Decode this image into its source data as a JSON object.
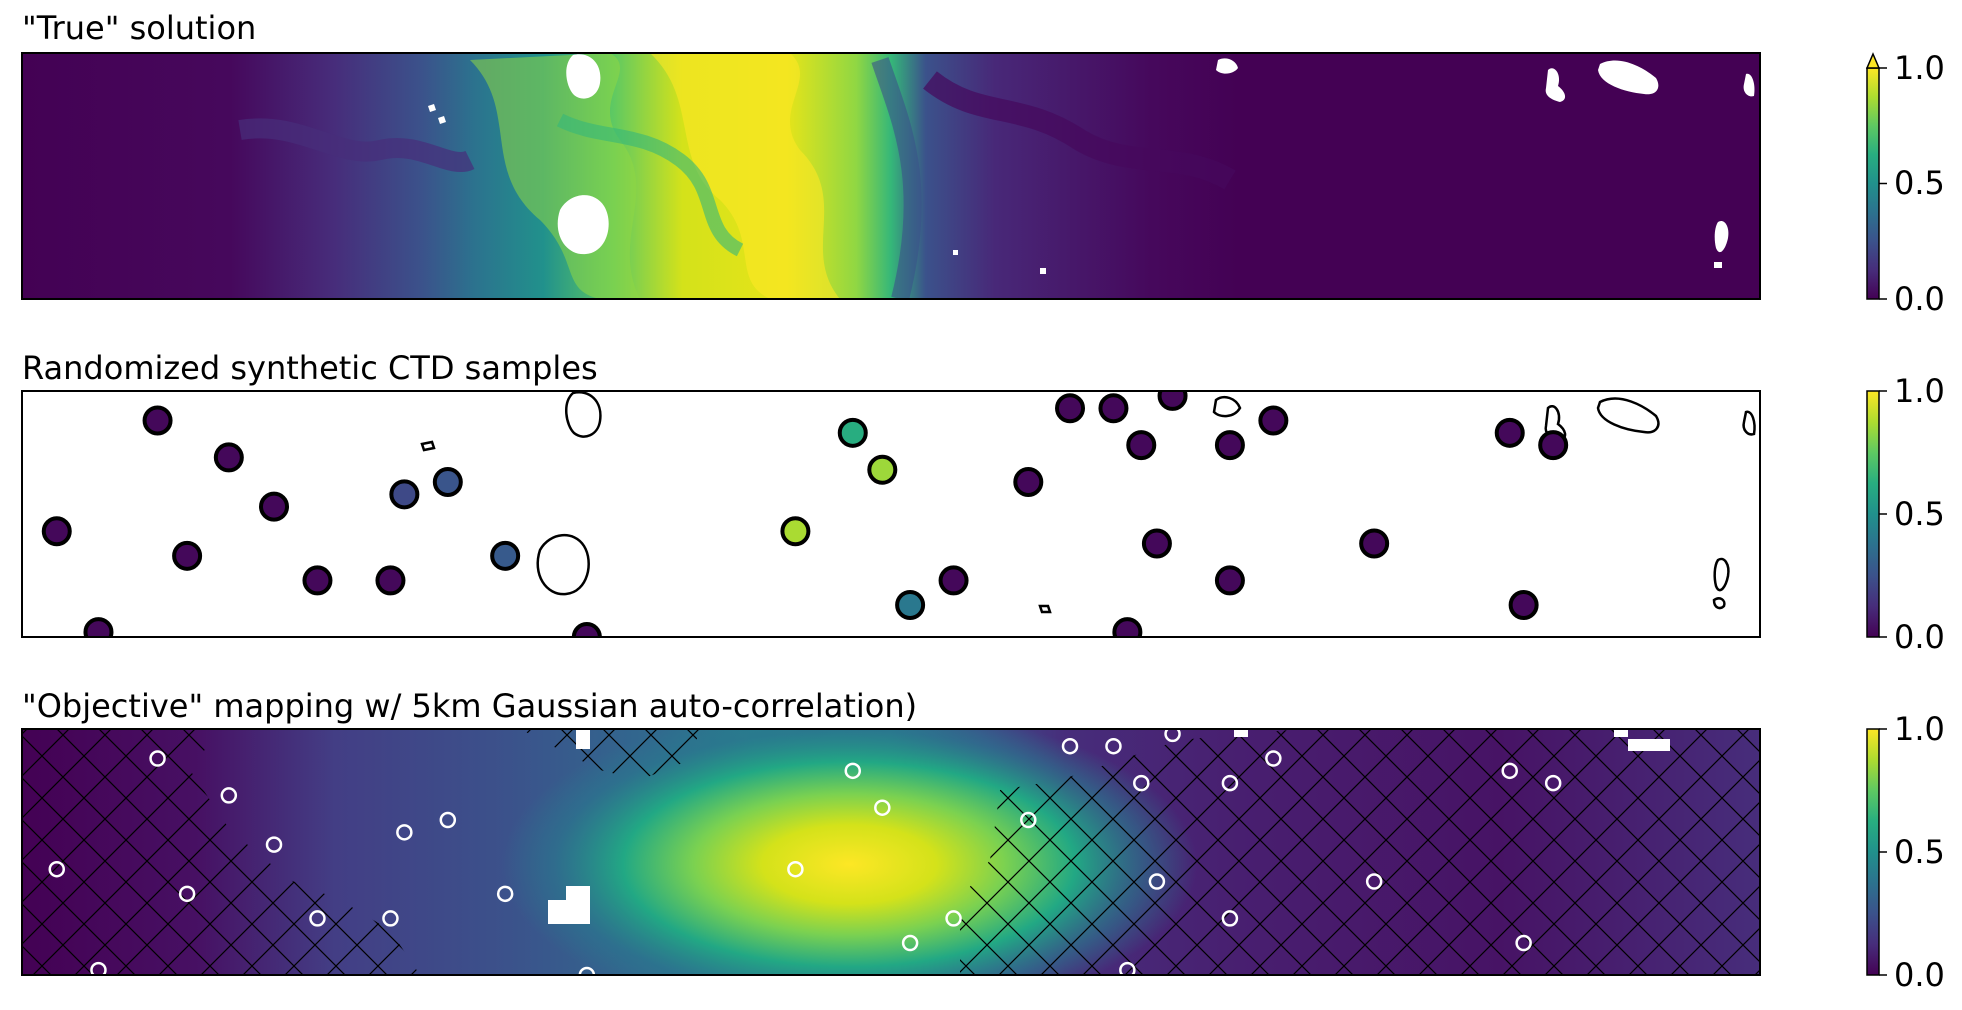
{
  "chart_data": [
    {
      "type": "heatmap",
      "title": "\"True\" solution",
      "colormap": "viridis",
      "colorbar": {
        "min": 0.0,
        "max": 1.0,
        "ticks": [
          "0.0",
          "0.5",
          "1.0"
        ],
        "extend": "max"
      },
      "xlabel": "",
      "ylabel": "",
      "axes_ticks": "none",
      "features": "turbulent tracer field; high values (~1.0) in central band, near zero elsewhere; white land masks"
    },
    {
      "type": "scatter",
      "title": "Randomized synthetic CTD samples",
      "colormap": "viridis",
      "colorbar": {
        "min": 0.0,
        "max": 1.0,
        "ticks": [
          "0.0",
          "0.5",
          "1.0"
        ]
      },
      "xlabel": "",
      "ylabel": "",
      "x_range": [
        0,
        1
      ],
      "y_range": [
        0,
        1
      ],
      "points": [
        {
          "x": 0.078,
          "y": 0.88,
          "value": 0.02
        },
        {
          "x": 0.119,
          "y": 0.73,
          "value": 0.02
        },
        {
          "x": 0.145,
          "y": 0.53,
          "value": 0.02
        },
        {
          "x": 0.02,
          "y": 0.43,
          "value": 0.02
        },
        {
          "x": 0.095,
          "y": 0.33,
          "value": 0.02
        },
        {
          "x": 0.044,
          "y": 0.02,
          "value": 0.02
        },
        {
          "x": 0.17,
          "y": 0.23,
          "value": 0.02
        },
        {
          "x": 0.212,
          "y": 0.23,
          "value": 0.02
        },
        {
          "x": 0.22,
          "y": 0.58,
          "value": 0.22
        },
        {
          "x": 0.245,
          "y": 0.63,
          "value": 0.26
        },
        {
          "x": 0.278,
          "y": 0.33,
          "value": 0.28
        },
        {
          "x": 0.445,
          "y": 0.43,
          "value": 0.87
        },
        {
          "x": 0.478,
          "y": 0.83,
          "value": 0.62
        },
        {
          "x": 0.495,
          "y": 0.68,
          "value": 0.85
        },
        {
          "x": 0.511,
          "y": 0.13,
          "value": 0.4
        },
        {
          "x": 0.536,
          "y": 0.23,
          "value": 0.02
        },
        {
          "x": 0.579,
          "y": 0.63,
          "value": 0.02
        },
        {
          "x": 0.603,
          "y": 0.93,
          "value": 0.02
        },
        {
          "x": 0.628,
          "y": 0.93,
          "value": 0.02
        },
        {
          "x": 0.644,
          "y": 0.78,
          "value": 0.02
        },
        {
          "x": 0.662,
          "y": 0.98,
          "value": 0.02
        },
        {
          "x": 0.653,
          "y": 0.38,
          "value": 0.02
        },
        {
          "x": 0.636,
          "y": 0.02,
          "value": 0.02
        },
        {
          "x": 0.695,
          "y": 0.78,
          "value": 0.02
        },
        {
          "x": 0.72,
          "y": 0.88,
          "value": 0.02
        },
        {
          "x": 0.695,
          "y": 0.23,
          "value": 0.02
        },
        {
          "x": 0.778,
          "y": 0.38,
          "value": 0.02
        },
        {
          "x": 0.856,
          "y": 0.83,
          "value": 0.02
        },
        {
          "x": 0.881,
          "y": 0.78,
          "value": 0.02
        },
        {
          "x": 0.864,
          "y": 0.13,
          "value": 0.02
        },
        {
          "x": 0.325,
          "y": 0.0,
          "value": 0.02
        }
      ]
    },
    {
      "type": "heatmap",
      "title": "\"Objective\" mapping w/ 5km Gaussian auto-correlation)",
      "colormap": "viridis",
      "colorbar": {
        "min": 0.0,
        "max": 1.0,
        "ticks": [
          "0.0",
          "0.5",
          "1.0"
        ]
      },
      "xlabel": "",
      "ylabel": "",
      "axes_ticks": "none",
      "features": "smooth interpolated field; maximum (~0.95) near x~0.47, y~0.55; low-confidence regions cross-hatched; sample locations as white open circles"
    }
  ]
}
